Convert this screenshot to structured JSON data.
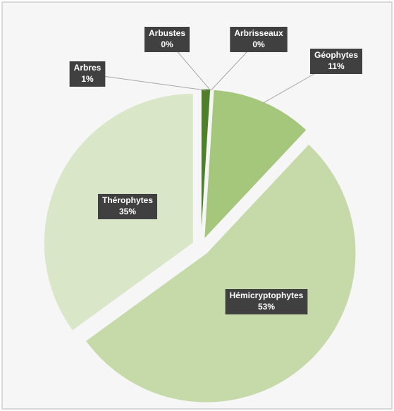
{
  "chart_data": {
    "type": "pie",
    "categories": [
      "Arbres",
      "Arbustes",
      "Arbrisseaux",
      "Géophytes",
      "Hémicryptophytes",
      "Thérophytes"
    ],
    "values": [
      1,
      0,
      0,
      11,
      53,
      35
    ],
    "value_labels": [
      "1%",
      "0%",
      "0%",
      "11%",
      "53%",
      "35%"
    ],
    "colors": [
      "#4f7f2b",
      "#3f6a21",
      "#5c8a33",
      "#a4c77c",
      "#c6d9a8",
      "#dae6c8"
    ]
  }
}
